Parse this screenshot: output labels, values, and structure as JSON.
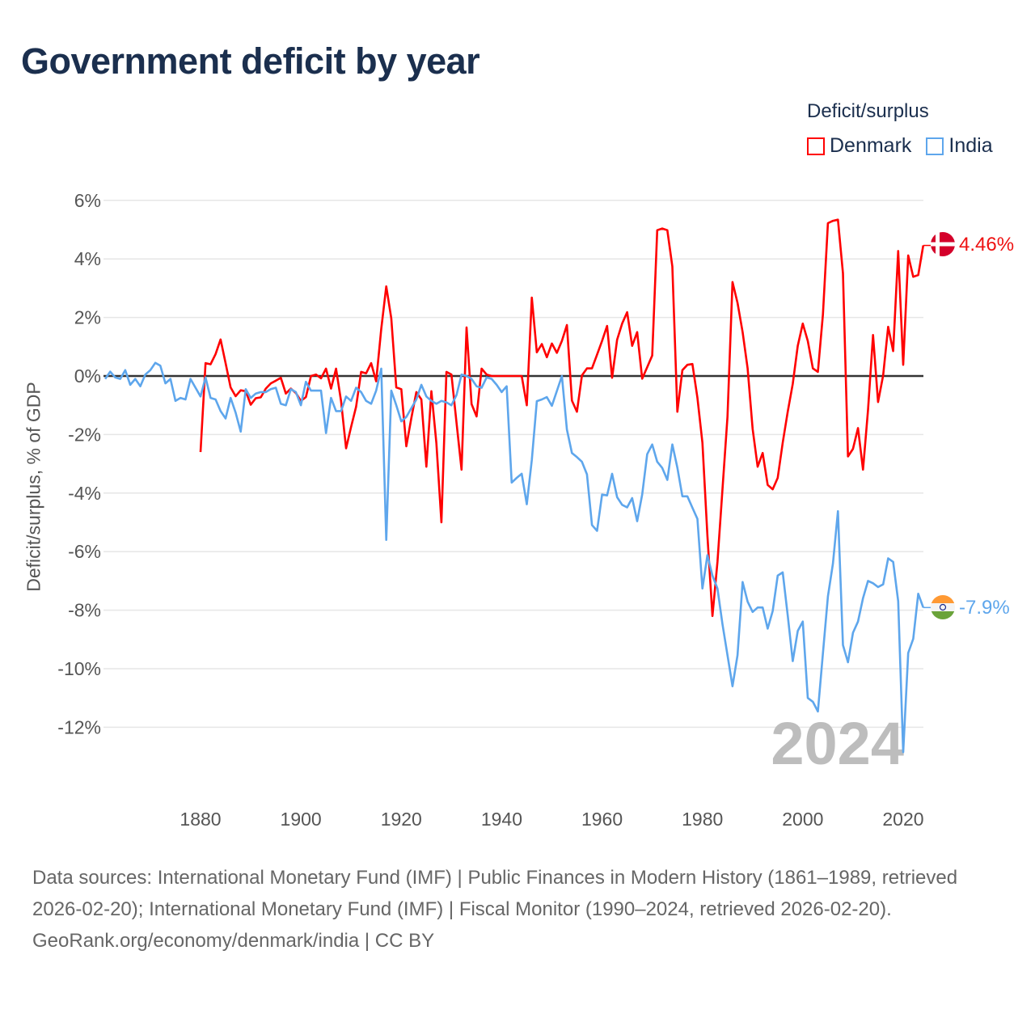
{
  "title": "Government deficit by year",
  "legend": {
    "title": "Deficit/surplus",
    "items": [
      {
        "label": "Denmark",
        "color": "#ff0000"
      },
      {
        "label": "India",
        "color": "#5ea6ec"
      }
    ]
  },
  "end_labels": {
    "denmark": "4.46%",
    "india": "-7.9%"
  },
  "year_watermark": "2024",
  "footer": {
    "sources": "Data sources: International Monetary Fund (IMF) | Public Finances in Modern History (1861–1989, retrieved 2026-02-20); International Monetary Fund (IMF) | Fiscal Monitor (1990–2024, retrieved 2026-02-20).",
    "credit": "GeoRank.org/economy/denmark/india | CC BY"
  },
  "chart_data": {
    "type": "line",
    "title": "Government deficit by year",
    "xlabel": "",
    "ylabel": "Deficit/surplus, % of GDP",
    "xlim": [
      1861,
      2024
    ],
    "ylim": [
      -13,
      6.5
    ],
    "x_ticks": [
      1880,
      1900,
      1920,
      1940,
      1960,
      1980,
      2000,
      2020
    ],
    "y_ticks": [
      6,
      4,
      2,
      0,
      -2,
      -4,
      -6,
      -8,
      -10,
      -12
    ],
    "y_tick_labels": [
      "6%",
      "4%",
      "2%",
      "0%",
      "-2%",
      "-4%",
      "-6%",
      "-8%",
      "-10%",
      "-12%"
    ],
    "x_tick_labels": [
      "1880",
      "1900",
      "1920",
      "1940",
      "1960",
      "1980",
      "2000",
      "2020"
    ],
    "grid": true,
    "legend_position": "top-right",
    "series": [
      {
        "name": "Denmark",
        "color": "#ff0000",
        "start_year": 1880,
        "values": [
          -2.6,
          0.44,
          0.4,
          0.75,
          1.25,
          0.44,
          -0.39,
          -0.69,
          -0.49,
          -0.52,
          -0.98,
          -0.76,
          -0.73,
          -0.43,
          -0.25,
          -0.16,
          -0.06,
          -0.6,
          -0.43,
          -0.58,
          -0.85,
          -0.72,
          0.0,
          0.05,
          -0.08,
          0.25,
          -0.43,
          0.25,
          -0.86,
          -2.47,
          -1.74,
          -1.05,
          0.14,
          0.09,
          0.44,
          -0.18,
          1.61,
          3.06,
          1.97,
          -0.39,
          -0.45,
          -2.4,
          -1.44,
          -0.55,
          -0.8,
          -3.1,
          -0.52,
          -2.3,
          -5.0,
          0.14,
          0.05,
          -1.6,
          -3.2,
          1.66,
          -0.96,
          -1.38,
          0.25,
          0.05,
          0,
          0,
          0,
          0,
          0,
          0,
          0,
          -1.0,
          2.68,
          0.81,
          1.09,
          0.64,
          1.11,
          0.79,
          1.2,
          1.74,
          -0.84,
          -1.22,
          0.02,
          0.26,
          0.26,
          0.73,
          1.2,
          1.71,
          -0.06,
          1.24,
          1.79,
          2.18,
          1.03,
          1.5,
          -0.09,
          0.3,
          0.7,
          4.98,
          5.04,
          4.98,
          3.74,
          -1.22,
          0.2,
          0.38,
          0.41,
          -0.74,
          -2.28,
          -5.47,
          -8.2,
          -6.35,
          -3.87,
          -1.39,
          3.21,
          2.5,
          1.5,
          0.26,
          -1.81,
          -3.1,
          -2.63,
          -3.72,
          -3.87,
          -3.48,
          -2.28,
          -1.22,
          -0.27,
          1.03,
          1.79,
          1.2,
          0.26,
          0.14,
          2.09,
          5.22,
          5.3,
          5.34,
          3.51,
          -2.75,
          -2.49,
          -1.78,
          -3.2,
          -1.16,
          1.4,
          -0.89,
          0.02,
          1.68,
          0.85,
          4.27,
          0.38,
          4.12,
          3.39,
          3.45,
          4.46
        ]
      },
      {
        "name": "India",
        "color": "#5ea6ec",
        "start_year": 1861,
        "values": [
          -0.1,
          0.15,
          -0.05,
          -0.1,
          0.2,
          -0.3,
          -0.1,
          -0.35,
          0.05,
          0.2,
          0.45,
          0.35,
          -0.25,
          -0.1,
          -0.85,
          -0.75,
          -0.8,
          -0.1,
          -0.4,
          -0.7,
          -0.05,
          -0.75,
          -0.8,
          -1.2,
          -1.45,
          -0.75,
          -1.25,
          -1.9,
          -0.45,
          -0.75,
          -0.6,
          -0.55,
          -0.55,
          -0.45,
          -0.4,
          -0.95,
          -1.0,
          -0.45,
          -0.55,
          -1.0,
          -0.2,
          -0.5,
          -0.5,
          -0.5,
          -1.95,
          -0.75,
          -1.2,
          -1.2,
          -0.7,
          -0.85,
          -0.4,
          -0.55,
          -0.85,
          -0.95,
          -0.5,
          0.25,
          -5.6,
          -0.5,
          -1.0,
          -1.55,
          -1.4,
          -1.1,
          -0.8,
          -0.3,
          -0.7,
          -0.85,
          -0.95,
          -0.85,
          -0.9,
          -1.0,
          -0.65,
          0.05,
          0,
          -0.1,
          -0.35,
          -0.4,
          -0.05,
          -0.1,
          -0.3,
          -0.55,
          -0.35,
          -3.64,
          -3.48,
          -3.34,
          -4.38,
          -2.87,
          -0.86,
          -0.8,
          -0.72,
          -1.02,
          -0.51,
          0.0,
          -1.83,
          -2.63,
          -2.77,
          -2.93,
          -3.36,
          -5.09,
          -5.29,
          -4.05,
          -4.08,
          -3.34,
          -4.14,
          -4.4,
          -4.49,
          -4.17,
          -4.96,
          -4.05,
          -2.67,
          -2.34,
          -2.93,
          -3.14,
          -3.55,
          -2.34,
          -3.13,
          -4.11,
          -4.11,
          -4.5,
          -4.88,
          -7.26,
          -6.12,
          -6.82,
          -7.26,
          -8.48,
          -9.54,
          -10.6,
          -9.54,
          -7.04,
          -7.71,
          -8.06,
          -7.91,
          -7.91,
          -8.63,
          -8.03,
          -6.82,
          -6.71,
          -8.18,
          -9.74,
          -8.71,
          -8.39,
          -11.0,
          -11.13,
          -11.46,
          -9.48,
          -7.53,
          -6.41,
          -4.62,
          -9.19,
          -9.78,
          -8.77,
          -8.39,
          -7.59,
          -7.0,
          -7.08,
          -7.21,
          -7.12,
          -6.23,
          -6.35,
          -7.69,
          -12.85,
          -9.46,
          -8.98,
          -7.44,
          -7.91
        ]
      }
    ]
  }
}
